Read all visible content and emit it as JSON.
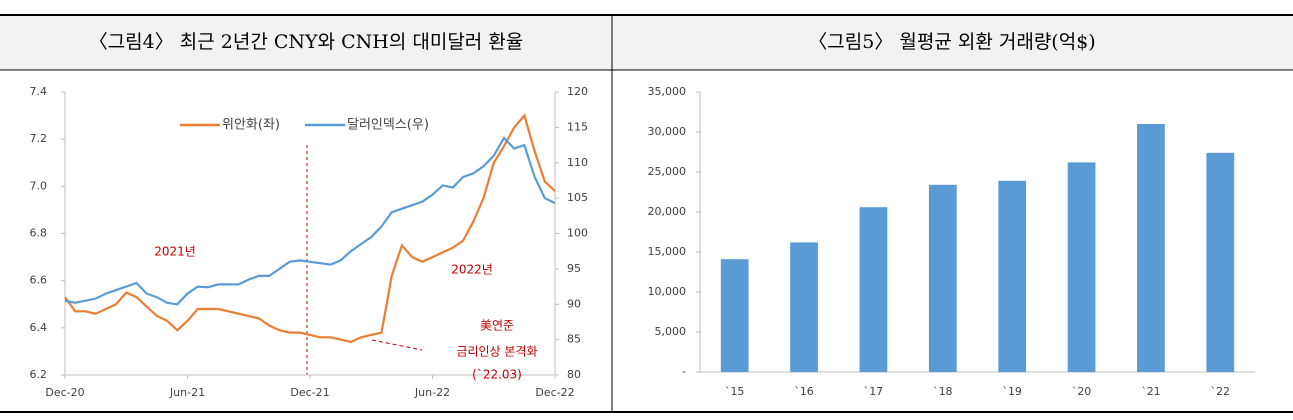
{
  "chart_data": [
    {
      "type": "line",
      "title": "〈그림4〉 최근 2년간 CNY와 CNH의 대미달러 환율",
      "categories": [
        "Dec-20",
        null,
        null,
        null,
        null,
        null,
        null,
        null,
        null,
        null,
        null,
        null,
        "Jun-21",
        null,
        null,
        null,
        null,
        null,
        null,
        null,
        null,
        null,
        null,
        null,
        "Dec-21",
        null,
        null,
        null,
        null,
        null,
        null,
        null,
        null,
        null,
        null,
        null,
        "Jun-22",
        null,
        null,
        null,
        null,
        null,
        null,
        null,
        null,
        null,
        null,
        null,
        "Dec-22"
      ],
      "series": [
        {
          "name": "위안화(좌)",
          "color": "#ed7d31",
          "values": [
            6.53,
            6.47,
            6.47,
            6.46,
            6.48,
            6.5,
            6.55,
            6.53,
            6.49,
            6.45,
            6.43,
            6.39,
            6.43,
            6.48,
            6.48,
            6.48,
            6.47,
            6.46,
            6.45,
            6.44,
            6.41,
            6.39,
            6.38,
            6.38,
            6.37,
            6.36,
            6.36,
            6.35,
            6.34,
            6.36,
            6.37,
            6.38,
            6.62,
            6.75,
            6.7,
            6.68,
            6.7,
            6.72,
            6.74,
            6.77,
            6.85,
            6.95,
            7.1,
            7.17,
            7.25,
            7.3,
            7.15,
            7.02,
            6.98
          ]
        },
        {
          "name": "달러인덱스(우)",
          "color": "#5b9bd5",
          "axis": "y2",
          "values": [
            90.5,
            90.2,
            90.5,
            90.8,
            91.5,
            92,
            92.5,
            93,
            91.5,
            91,
            90.2,
            90,
            91.5,
            92.5,
            92.4,
            92.8,
            92.8,
            92.8,
            93.5,
            94,
            94,
            95,
            96,
            96.2,
            96,
            95.8,
            95.6,
            96.2,
            97.5,
            98.5,
            99.5,
            101,
            103,
            103.5,
            104,
            104.5,
            105.5,
            106.8,
            106.5,
            108,
            108.5,
            109.5,
            111,
            113.5,
            112,
            112.5,
            108,
            105,
            104.3
          ]
        }
      ],
      "ylim": [
        6.2,
        7.4
      ],
      "yticks": [
        6.2,
        6.4,
        6.6,
        6.8,
        {
          "value": 7,
          "label": "7.0"
        },
        7.2,
        7.4
      ],
      "y2lim": [
        80,
        120
      ],
      "y2ticks": [
        80,
        85,
        90,
        95,
        100,
        105,
        110,
        115,
        120
      ],
      "annotations": [
        "2021년",
        "2022년",
        "美연준",
        "금리인상 본격화",
        "(`22.03)"
      ]
    },
    {
      "type": "bar",
      "title": "〈그림5〉 월평균 외환 거래량(억$)",
      "categories": [
        "`15",
        "`16",
        "`17",
        "`18",
        "`19",
        "`20",
        "`21",
        "`22"
      ],
      "values": [
        14100,
        16200,
        20600,
        23400,
        23900,
        26200,
        31000,
        27400
      ],
      "color": "#5b9bd5",
      "ylim": [
        0,
        35000
      ],
      "yticks": [
        {
          "value": 0,
          "label": "-"
        },
        {
          "value": 5000,
          "label": "5,000"
        },
        {
          "value": 10000,
          "label": "10,000"
        },
        {
          "value": 15000,
          "label": "15,000"
        },
        {
          "value": 20000,
          "label": "20,000"
        },
        {
          "value": 25000,
          "label": "25,000"
        },
        {
          "value": 30000,
          "label": "30,000"
        },
        {
          "value": 35000,
          "label": "35,000"
        }
      ]
    }
  ]
}
